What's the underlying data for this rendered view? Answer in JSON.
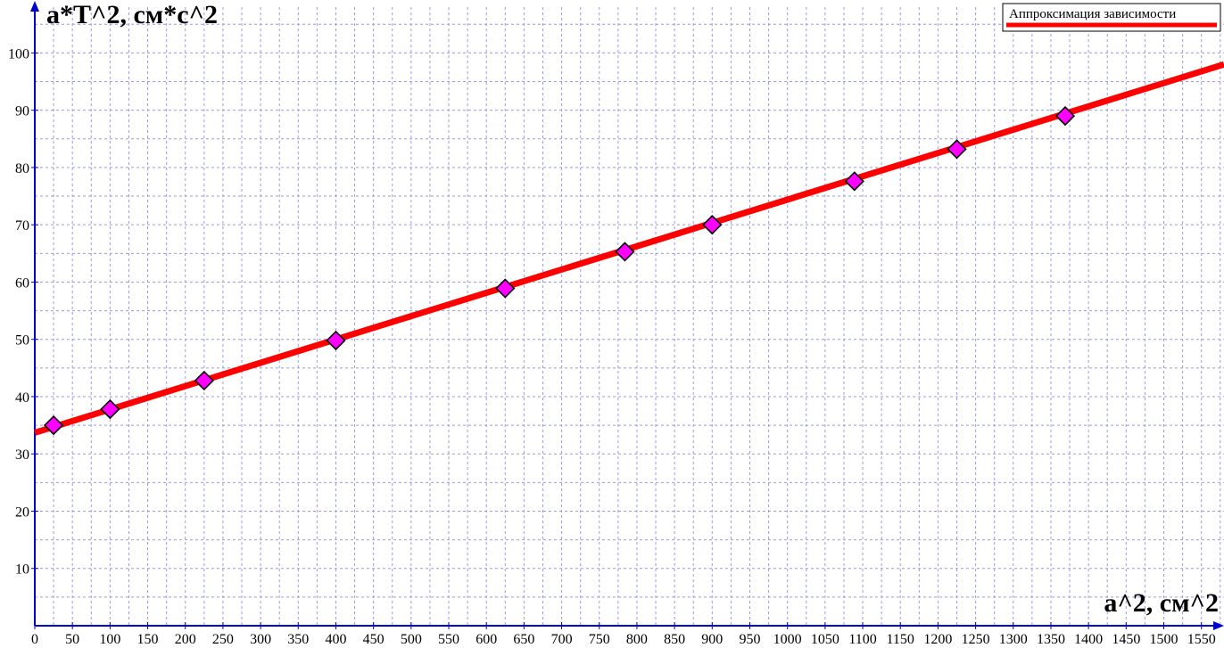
{
  "chart_data": {
    "type": "scatter",
    "xlabel": "a^2, см^2",
    "ylabel": "a*T^2, см*с^2",
    "xlim": [
      0,
      1580
    ],
    "ylim": [
      0,
      108
    ],
    "x_ticks": [
      0,
      50,
      100,
      150,
      200,
      250,
      300,
      350,
      400,
      450,
      500,
      550,
      600,
      650,
      700,
      750,
      800,
      850,
      900,
      950,
      1000,
      1050,
      1100,
      1150,
      1200,
      1250,
      1300,
      1350,
      1400,
      1450,
      1500,
      1550
    ],
    "y_ticks": [
      10,
      20,
      30,
      40,
      50,
      60,
      70,
      80,
      90,
      100
    ],
    "x_minor_step": 25,
    "y_minor_step": 5,
    "grid": true,
    "legend_position": "top-right",
    "series": [
      {
        "type": "scatter",
        "marker": "diamond",
        "color": "#ff00ff",
        "points": [
          {
            "x": 25,
            "y": 35.0
          },
          {
            "x": 100,
            "y": 37.8
          },
          {
            "x": 225,
            "y": 42.8
          },
          {
            "x": 400,
            "y": 49.8
          },
          {
            "x": 625,
            "y": 58.9
          },
          {
            "x": 784,
            "y": 65.3
          },
          {
            "x": 900,
            "y": 70.0
          },
          {
            "x": 1089,
            "y": 77.6
          },
          {
            "x": 1225,
            "y": 83.2
          },
          {
            "x": 1369,
            "y": 89.0
          }
        ]
      },
      {
        "type": "line",
        "name": "Аппроксимация зависимости",
        "color": "#ff0000",
        "points": [
          {
            "x": 0,
            "y": 33.7
          },
          {
            "x": 1580,
            "y": 98.0
          }
        ]
      }
    ]
  }
}
